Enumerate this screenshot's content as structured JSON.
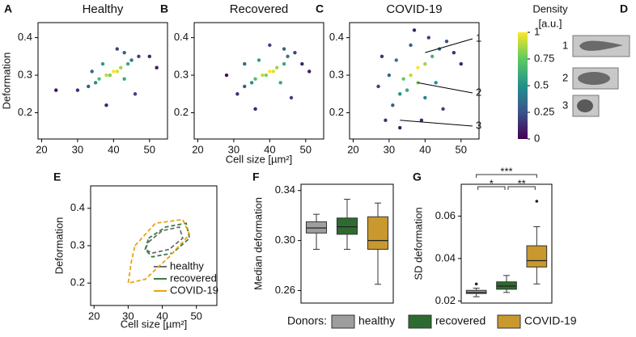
{
  "chart_data": [
    {
      "type": "scatter",
      "label": "A",
      "title": "Healthy",
      "title_color": "#8c8c8c",
      "y_label": "Deformation",
      "xlim": [
        19,
        55
      ],
      "ylim": [
        0.13,
        0.44
      ],
      "xticks": [
        20,
        30,
        40,
        50
      ],
      "yticks": [
        0.2,
        0.3,
        0.4
      ],
      "x": [
        40,
        38,
        42,
        36,
        44,
        41,
        39,
        35,
        45,
        33,
        47,
        43,
        37,
        50,
        30,
        24,
        52,
        41,
        38,
        46,
        43,
        34
      ],
      "y": [
        0.31,
        0.3,
        0.32,
        0.29,
        0.33,
        0.31,
        0.3,
        0.28,
        0.34,
        0.27,
        0.35,
        0.29,
        0.33,
        0.35,
        0.26,
        0.26,
        0.32,
        0.37,
        0.22,
        0.25,
        0.36,
        0.31
      ],
      "density": [
        1,
        0.9,
        0.85,
        0.7,
        0.6,
        0.95,
        0.8,
        0.5,
        0.4,
        0.3,
        0.2,
        0.6,
        0.55,
        0.1,
        0.15,
        0.05,
        0.08,
        0.2,
        0.1,
        0.2,
        0.3,
        0.35
      ]
    },
    {
      "type": "scatter",
      "label": "B",
      "title": "Recovered",
      "title_color": "#3a8a3a",
      "x_label": "Cell size [µm²]",
      "xlim": [
        19,
        55
      ],
      "ylim": [
        0.13,
        0.44
      ],
      "xticks": [
        20,
        30,
        40,
        50
      ],
      "yticks": [
        0.2,
        0.3,
        0.4
      ],
      "x": [
        40,
        38,
        42,
        36,
        44,
        41,
        39,
        35,
        45,
        33,
        47,
        43,
        37,
        49,
        31,
        28,
        51,
        40,
        36,
        46,
        44,
        33
      ],
      "y": [
        0.31,
        0.3,
        0.32,
        0.29,
        0.33,
        0.31,
        0.3,
        0.28,
        0.35,
        0.27,
        0.36,
        0.28,
        0.34,
        0.33,
        0.25,
        0.3,
        0.31,
        0.38,
        0.21,
        0.24,
        0.37,
        0.33
      ],
      "density": [
        1,
        0.9,
        0.85,
        0.7,
        0.6,
        0.95,
        0.8,
        0.5,
        0.4,
        0.3,
        0.2,
        0.6,
        0.55,
        0.1,
        0.15,
        0.05,
        0.08,
        0.2,
        0.1,
        0.2,
        0.3,
        0.35
      ]
    },
    {
      "type": "scatter",
      "label": "C",
      "title": "COVID-19",
      "title_color": "#e8a800",
      "annotations": [
        "1",
        "2",
        "3"
      ],
      "xlim": [
        19,
        55
      ],
      "ylim": [
        0.13,
        0.44
      ],
      "xticks": [
        20,
        30,
        40,
        50
      ],
      "yticks": [
        0.2,
        0.3,
        0.4
      ],
      "x": [
        38,
        36,
        40,
        34,
        42,
        38,
        35,
        33,
        44,
        31,
        46,
        40,
        32,
        48,
        29,
        27,
        50,
        37,
        33,
        45,
        41,
        30,
        36,
        43,
        28,
        39
      ],
      "y": [
        0.32,
        0.3,
        0.33,
        0.29,
        0.35,
        0.28,
        0.26,
        0.25,
        0.37,
        0.22,
        0.39,
        0.24,
        0.34,
        0.36,
        0.18,
        0.27,
        0.33,
        0.42,
        0.16,
        0.21,
        0.4,
        0.3,
        0.38,
        0.28,
        0.35,
        0.18
      ],
      "density": [
        1,
        0.9,
        0.85,
        0.75,
        0.65,
        0.8,
        0.6,
        0.5,
        0.4,
        0.3,
        0.25,
        0.45,
        0.4,
        0.15,
        0.15,
        0.2,
        0.1,
        0.1,
        0.08,
        0.2,
        0.2,
        0.35,
        0.3,
        0.5,
        0.15,
        0.12
      ]
    },
    {
      "type": "colorbar",
      "title": [
        "Density",
        "[a.u.]"
      ],
      "lim": [
        0,
        1
      ],
      "ticks": [
        0,
        0.25,
        0.5,
        0.75,
        1
      ],
      "colors": [
        "#440154",
        "#3b528b",
        "#21918c",
        "#5ec962",
        "#fde725"
      ]
    },
    {
      "type": "image",
      "label": "D",
      "items": [
        "1",
        "2",
        "3"
      ]
    },
    {
      "type": "contour",
      "label": "E",
      "x_label": "Cell size [µm²]",
      "y_label": "Deformation",
      "xlim": [
        19,
        56
      ],
      "ylim": [
        0.14,
        0.46
      ],
      "xticks": [
        20,
        30,
        40,
        50
      ],
      "yticks": [
        0.2,
        0.3,
        0.4
      ],
      "series": [
        {
          "name": "healthy",
          "color": "#6e6e6e",
          "x": [
            36,
            40,
            45,
            46,
            42,
            37,
            35,
            36
          ],
          "y": [
            0.31,
            0.34,
            0.35,
            0.32,
            0.29,
            0.28,
            0.29,
            0.31
          ]
        },
        {
          "name": "recovered",
          "color": "#3a7d44",
          "x": [
            36,
            41,
            47,
            48,
            43,
            37,
            35,
            36
          ],
          "y": [
            0.32,
            0.35,
            0.36,
            0.32,
            0.28,
            0.27,
            0.29,
            0.32
          ]
        },
        {
          "name": "COVID-19",
          "color": "#e8a317",
          "x": [
            32,
            38,
            46,
            48,
            42,
            35,
            30,
            31,
            32
          ],
          "y": [
            0.3,
            0.36,
            0.37,
            0.33,
            0.27,
            0.21,
            0.2,
            0.26,
            0.3
          ]
        }
      ]
    },
    {
      "type": "box",
      "label": "F",
      "y_label": "Median deformation",
      "ylim": [
        0.25,
        0.345
      ],
      "yticks": [
        0.26,
        {
          "value": 0.3,
          "label": "0.30"
        },
        0.34
      ],
      "legend_title": "Donors:",
      "categories": [
        "healthy",
        "recovered",
        "COVID-19"
      ],
      "colors": [
        "#9e9e9e",
        "#2e6b30",
        "#c9982e"
      ],
      "boxes": [
        {
          "whislo": 0.293,
          "q1": 0.306,
          "med": 0.31,
          "q3": 0.315,
          "whishi": 0.321,
          "fliers": []
        },
        {
          "whislo": 0.293,
          "q1": 0.305,
          "med": 0.311,
          "q3": 0.318,
          "whishi": 0.333,
          "fliers": []
        },
        {
          "whislo": 0.265,
          "q1": 0.293,
          "med": 0.3,
          "q3": 0.319,
          "whishi": 0.33,
          "fliers": []
        }
      ]
    },
    {
      "type": "box",
      "label": "G",
      "y_label": "SD deformation",
      "ylim": [
        0.019,
        0.075
      ],
      "yticks": [
        0.02,
        0.04,
        0.06
      ],
      "colors": [
        "#9e9e9e",
        "#2e6b30",
        "#c9982e"
      ],
      "boxes": [
        {
          "whislo": 0.022,
          "q1": 0.0235,
          "med": 0.024,
          "q3": 0.025,
          "whishi": 0.026,
          "fliers": [
            0.028
          ]
        },
        {
          "whislo": 0.024,
          "q1": 0.0255,
          "med": 0.027,
          "q3": 0.029,
          "whishi": 0.032,
          "fliers": []
        },
        {
          "whislo": 0.028,
          "q1": 0.036,
          "med": 0.039,
          "q3": 0.046,
          "whishi": 0.055,
          "fliers": [
            0.067
          ]
        }
      ],
      "significance": [
        {
          "label": "***",
          "from": 0,
          "to": 2
        },
        {
          "label": "*",
          "from": 0,
          "to": 1
        },
        {
          "label": "**",
          "from": 1,
          "to": 2
        }
      ]
    }
  ]
}
